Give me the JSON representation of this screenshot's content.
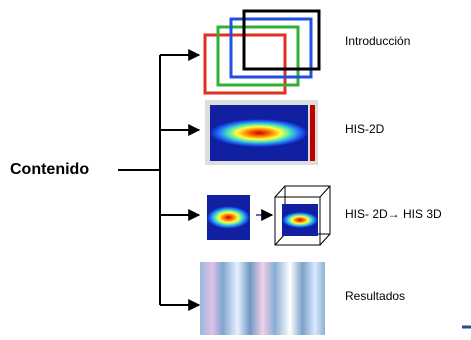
{
  "title": "Contenido",
  "items": [
    {
      "label": "Introducción"
    },
    {
      "label": "HIS-2D"
    },
    {
      "label": "HIS- 2D→ HIS 3D"
    },
    {
      "label": "Resultados"
    }
  ]
}
